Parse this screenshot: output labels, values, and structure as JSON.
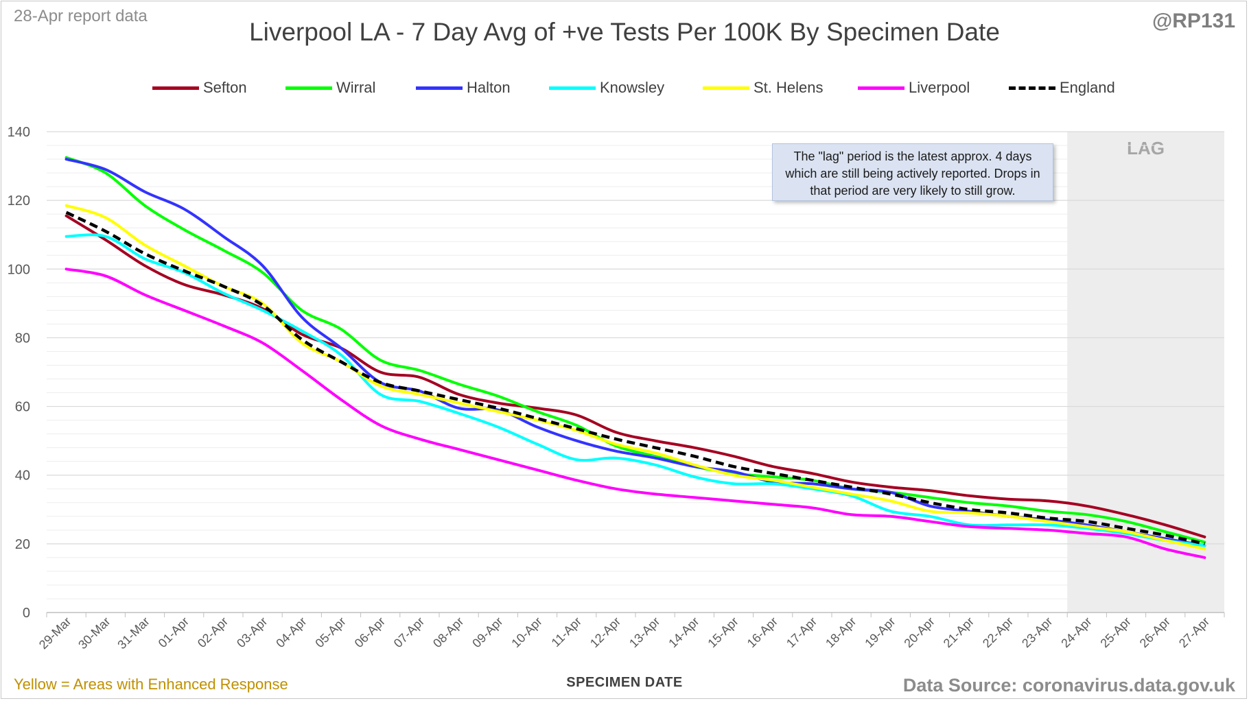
{
  "header": {
    "report_date": "28-Apr report data",
    "handle": "@RP131"
  },
  "footer": {
    "note": "Yellow = Areas with Enhanced Response",
    "source": "Data Source: coronavirus.data.gov.uk"
  },
  "annotation": {
    "text": "The \"lag\" period is the latest approx. 4 days which are still being actively reported. Drops in that period are very likely to still grow."
  },
  "chart_data": {
    "type": "line",
    "title": "Liverpool LA - 7 Day Avg of +ve Tests Per 100K By Specimen Date",
    "xlabel": "SPECIMEN DATE",
    "ylabel": "",
    "ylim": [
      0,
      140
    ],
    "yticks": [
      0,
      20,
      40,
      60,
      80,
      100,
      120,
      140
    ],
    "grid": "horizontal",
    "legend_position": "top",
    "lag_label": "LAG",
    "lag_start": "24-Apr",
    "lag_end": "27-Apr",
    "categories": [
      "29-Mar",
      "30-Mar",
      "31-Mar",
      "01-Apr",
      "02-Apr",
      "03-Apr",
      "04-Apr",
      "05-Apr",
      "06-Apr",
      "07-Apr",
      "08-Apr",
      "09-Apr",
      "10-Apr",
      "11-Apr",
      "12-Apr",
      "13-Apr",
      "14-Apr",
      "15-Apr",
      "16-Apr",
      "17-Apr",
      "18-Apr",
      "19-Apr",
      "20-Apr",
      "21-Apr",
      "22-Apr",
      "23-Apr",
      "24-Apr",
      "25-Apr",
      "26-Apr",
      "27-Apr"
    ],
    "series": [
      {
        "name": "Sefton",
        "color": "#a50021",
        "dashed": false,
        "values": [
          115.5,
          108.5,
          101,
          95.5,
          92.5,
          88.5,
          81,
          77,
          70,
          68.5,
          63.5,
          61,
          59.5,
          57.5,
          52.5,
          50,
          48,
          45.5,
          42.5,
          40.5,
          38,
          36.5,
          35.5,
          34,
          33,
          32.5,
          31,
          28.5,
          25.5,
          22
        ]
      },
      {
        "name": "Wirral",
        "color": "#00ff00",
        "dashed": false,
        "values": [
          132.5,
          128,
          118.5,
          111.5,
          105.5,
          99,
          88,
          82.5,
          73.5,
          70.5,
          66.5,
          63,
          58.5,
          54.5,
          48.5,
          45.5,
          42.5,
          40.5,
          39.5,
          38.5,
          36,
          35,
          33.5,
          32,
          31,
          29.5,
          28.5,
          26.5,
          23.5,
          20.5
        ]
      },
      {
        "name": "Halton",
        "color": "#3333ff",
        "dashed": false,
        "values": [
          132,
          129,
          122.5,
          117.5,
          109.5,
          101,
          86,
          77,
          67,
          64.5,
          59.5,
          59,
          54,
          50,
          47,
          45,
          42.5,
          41,
          38,
          37.5,
          36,
          35,
          31,
          29.5,
          28,
          27,
          25.5,
          23.5,
          21.5,
          19.5
        ]
      },
      {
        "name": "Knowsley",
        "color": "#00ffff",
        "dashed": false,
        "values": [
          109.5,
          109.5,
          103,
          99,
          93,
          88,
          82,
          75,
          63.5,
          61.5,
          58,
          54,
          49,
          44.5,
          45,
          43,
          39.5,
          37.5,
          37.5,
          36,
          34,
          29.5,
          28,
          25.5,
          25.5,
          25.5,
          24.5,
          23,
          21,
          19.5
        ]
      },
      {
        "name": "St. Helens",
        "color": "#ffff00",
        "dashed": false,
        "values": [
          118.5,
          115,
          107,
          101,
          95,
          90,
          78.5,
          73,
          66,
          63.5,
          61,
          58.5,
          56,
          53,
          49,
          46.5,
          43,
          40,
          38.5,
          36.5,
          34.5,
          32.5,
          29.5,
          29,
          28,
          26.5,
          25,
          23.5,
          21,
          18.5
        ]
      },
      {
        "name": "Liverpool",
        "color": "#ff00ff",
        "dashed": false,
        "values": [
          100,
          98,
          92.5,
          88,
          83.5,
          78.5,
          70.5,
          62,
          54.5,
          50.5,
          47.5,
          44.5,
          41.5,
          38.5,
          36,
          34.5,
          33.5,
          32.5,
          31.5,
          30.5,
          28.5,
          28,
          26.5,
          25,
          24.5,
          24,
          23,
          22,
          18.5,
          16
        ]
      },
      {
        "name": "England",
        "color": "#000000",
        "dashed": true,
        "values": [
          116.5,
          111,
          104.5,
          99.5,
          95,
          89.5,
          79.5,
          73,
          67,
          64.5,
          62,
          59.5,
          56.5,
          53.5,
          50.5,
          48,
          45.5,
          42.5,
          40.5,
          38.5,
          36.5,
          34.5,
          32,
          30,
          29,
          27.5,
          26.5,
          24.5,
          22.5,
          20
        ]
      }
    ]
  }
}
